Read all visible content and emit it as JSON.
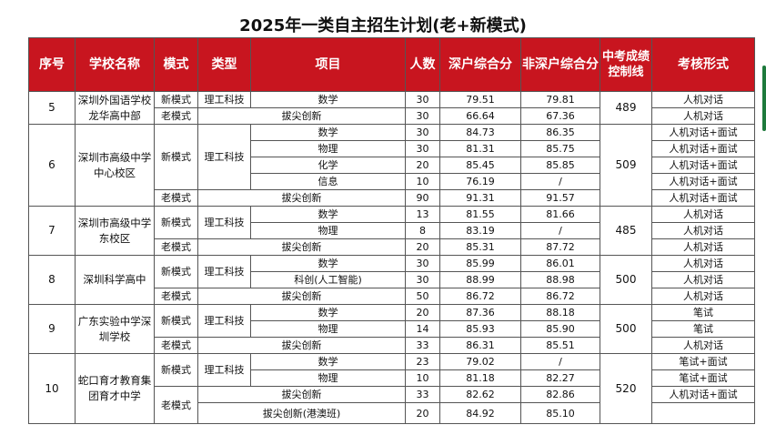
{
  "title": "2025年一类自主招生计划(老+新模式)",
  "headers": {
    "seq": "序号",
    "school": "学校名称",
    "mode": "模式",
    "type": "类型",
    "project": "项目",
    "count": "人数",
    "sz_score": "深户综合分",
    "nonsz_score": "非深户综合分",
    "control_line": "中考成绩控制线",
    "assessment": "考核形式"
  },
  "rows": {
    "r5a": {
      "seq": "5",
      "school": "深圳外国语学校龙华高中部",
      "mode": "新模式",
      "type": "理工科技",
      "project": "数学",
      "count": "30",
      "sz": "79.51",
      "nonsz": "79.81",
      "line": "489",
      "assess": "人机对话"
    },
    "r5b": {
      "mode": "老模式",
      "project": "拔尖创新",
      "count": "30",
      "sz": "66.64",
      "nonsz": "67.36",
      "assess": "人机对话"
    },
    "r6a": {
      "seq": "6",
      "school": "深圳市高级中学中心校区",
      "mode": "新模式",
      "type": "理工科技",
      "project": "数学",
      "count": "30",
      "sz": "84.73",
      "nonsz": "86.35",
      "line": "509",
      "assess": "人机对话+面试"
    },
    "r6b": {
      "project": "物理",
      "count": "30",
      "sz": "81.31",
      "nonsz": "85.75",
      "assess": "人机对话+面试"
    },
    "r6c": {
      "project": "化学",
      "count": "20",
      "sz": "85.45",
      "nonsz": "85.85",
      "assess": "人机对话+面试"
    },
    "r6d": {
      "project": "信息",
      "count": "10",
      "sz": "76.19",
      "nonsz": "/",
      "assess": "人机对话+面试"
    },
    "r6e": {
      "mode": "老模式",
      "project": "拔尖创新",
      "count": "90",
      "sz": "91.31",
      "nonsz": "91.57",
      "assess": "人机对话+面试"
    },
    "r7a": {
      "seq": "7",
      "school": "深圳市高级中学东校区",
      "mode": "新模式",
      "type": "理工科技",
      "project": "数学",
      "count": "13",
      "sz": "81.55",
      "nonsz": "81.66",
      "line": "485",
      "assess": "人机对话"
    },
    "r7b": {
      "project": "物理",
      "count": "8",
      "sz": "83.19",
      "nonsz": "/",
      "assess": "人机对话"
    },
    "r7c": {
      "mode": "老模式",
      "project": "拔尖创新",
      "count": "20",
      "sz": "85.31",
      "nonsz": "87.72",
      "assess": "人机对话"
    },
    "r8a": {
      "seq": "8",
      "school": "深圳科学高中",
      "mode": "新模式",
      "type": "理工科技",
      "project": "数学",
      "count": "30",
      "sz": "85.99",
      "nonsz": "86.01",
      "line": "500",
      "assess": "人机对话"
    },
    "r8b": {
      "project": "科创(人工智能)",
      "count": "30",
      "sz": "88.99",
      "nonsz": "88.98",
      "assess": "人机对话"
    },
    "r8c": {
      "mode": "老模式",
      "project": "拔尖创新",
      "count": "50",
      "sz": "86.72",
      "nonsz": "86.72",
      "assess": "人机对话"
    },
    "r9a": {
      "seq": "9",
      "school": "广东实验中学深圳学校",
      "mode": "新模式",
      "type": "理工科技",
      "project": "数学",
      "count": "20",
      "sz": "87.36",
      "nonsz": "88.18",
      "line": "500",
      "assess": "笔试"
    },
    "r9b": {
      "project": "物理",
      "count": "14",
      "sz": "85.93",
      "nonsz": "85.90",
      "assess": "笔试"
    },
    "r9c": {
      "mode": "老模式",
      "project": "拔尖创新",
      "count": "33",
      "sz": "86.31",
      "nonsz": "85.51",
      "assess": "人机对话"
    },
    "r10a": {
      "seq": "10",
      "school": "蛇口育才教育集团育才中学",
      "mode": "新模式",
      "type": "理工科技",
      "project": "数学",
      "count": "23",
      "sz": "79.02",
      "nonsz": "/",
      "line": "520",
      "assess": "笔试+面试"
    },
    "r10b": {
      "project": "物理",
      "count": "10",
      "sz": "81.18",
      "nonsz": "82.27",
      "assess": "笔试+面试"
    },
    "r10c": {
      "mode": "老模式",
      "project": "拔尖创新",
      "count": "33",
      "sz": "82.62",
      "nonsz": "82.86",
      "assess": "人机对话+面试"
    },
    "r10d": {
      "project": "拔尖创新(港澳班)",
      "count": "20",
      "sz": "84.92",
      "nonsz": "85.10",
      "assess": ""
    }
  }
}
